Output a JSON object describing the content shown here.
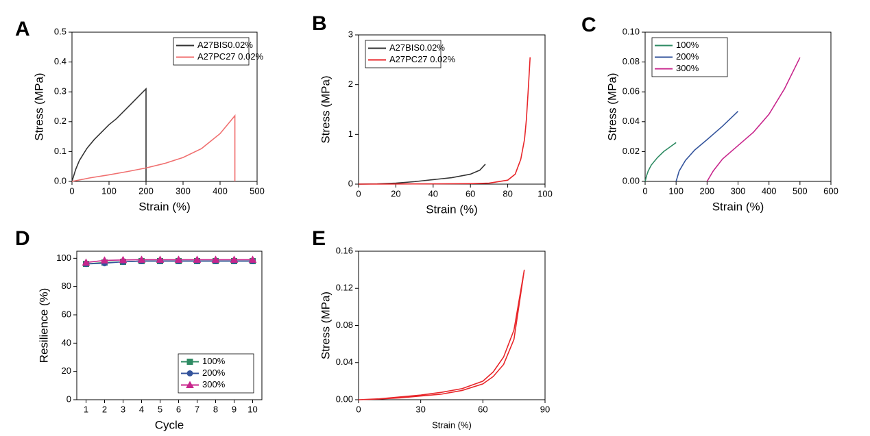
{
  "chart_data": [
    {
      "type": "line",
      "panel": "A",
      "xlabel": "Strain (%)",
      "ylabel": "Stress (MPa)",
      "xlim": [
        0,
        500
      ],
      "xticks": [
        0,
        100,
        200,
        300,
        400,
        500
      ],
      "ylim": [
        0,
        0.5
      ],
      "yticks": [
        {
          "value": 0,
          "label": "0.0"
        },
        0.1,
        0.2,
        0.3,
        0.4,
        0.5
      ],
      "legend": "upper right",
      "series": [
        {
          "name": "A27BIS0.02%",
          "color": "#333333",
          "x": [
            0,
            10,
            20,
            40,
            60,
            80,
            100,
            120,
            140,
            160,
            180,
            200,
            200
          ],
          "values": [
            0,
            0.04,
            0.07,
            0.11,
            0.14,
            0.165,
            0.19,
            0.21,
            0.235,
            0.26,
            0.285,
            0.31,
            0
          ]
        },
        {
          "name": "A27PC27 0.02%",
          "color": "#f07070",
          "x": [
            0,
            50,
            100,
            150,
            200,
            250,
            300,
            350,
            400,
            440,
            440
          ],
          "values": [
            0,
            0.012,
            0.022,
            0.033,
            0.045,
            0.06,
            0.08,
            0.11,
            0.16,
            0.22,
            0
          ]
        }
      ]
    },
    {
      "type": "line",
      "panel": "B",
      "xlabel": "Strain (%)",
      "ylabel": "Stress (MPa)",
      "xlim": [
        0,
        100
      ],
      "xticks": [
        0,
        20,
        40,
        60,
        80,
        100
      ],
      "ylim": [
        0,
        3
      ],
      "yticks": [
        0,
        1,
        2,
        3
      ],
      "legend": "upper left",
      "series": [
        {
          "name": "A27BIS0.02%",
          "color": "#333333",
          "x": [
            0,
            10,
            20,
            30,
            40,
            50,
            60,
            65,
            68
          ],
          "values": [
            0,
            0.005,
            0.02,
            0.05,
            0.09,
            0.13,
            0.2,
            0.28,
            0.4
          ]
        },
        {
          "name": "A27PC27 0.02%",
          "color": "#e8262a",
          "x": [
            0,
            20,
            40,
            60,
            70,
            80,
            84,
            87,
            89,
            90,
            91,
            92
          ],
          "values": [
            0,
            0.002,
            0.005,
            0.01,
            0.02,
            0.08,
            0.2,
            0.5,
            0.9,
            1.3,
            1.9,
            2.55
          ]
        }
      ]
    },
    {
      "type": "line",
      "panel": "C",
      "xlabel": "Strain (%)",
      "ylabel": "Stress (MPa)",
      "xlim": [
        0,
        600
      ],
      "xticks": [
        0,
        100,
        200,
        300,
        400,
        500,
        600
      ],
      "ylim": [
        0,
        0.1
      ],
      "yticks": [
        {
          "value": 0,
          "label": "0.00"
        },
        {
          "value": 0.02,
          "label": "0.02"
        },
        {
          "value": 0.04,
          "label": "0.04"
        },
        {
          "value": 0.06,
          "label": "0.06"
        },
        {
          "value": 0.08,
          "label": "0.08"
        },
        {
          "value": 0.1,
          "label": "0.10"
        }
      ],
      "legend": "upper left",
      "series": [
        {
          "name": "100%",
          "color": "#2e8b63",
          "x": [
            0,
            5,
            10,
            20,
            40,
            60,
            80,
            100
          ],
          "values": [
            0,
            0.004,
            0.007,
            0.011,
            0.016,
            0.02,
            0.023,
            0.026
          ]
        },
        {
          "name": "200%",
          "color": "#34549c",
          "x": [
            100,
            110,
            130,
            160,
            200,
            250,
            300
          ],
          "values": [
            0,
            0.007,
            0.014,
            0.021,
            0.028,
            0.037,
            0.047
          ]
        },
        {
          "name": "300%",
          "color": "#c8268c",
          "x": [
            200,
            220,
            250,
            300,
            350,
            400,
            450,
            500
          ],
          "values": [
            0,
            0.007,
            0.015,
            0.024,
            0.033,
            0.045,
            0.062,
            0.083
          ]
        }
      ]
    },
    {
      "type": "line",
      "panel": "D",
      "xlabel": "Cycle",
      "ylabel": "Resilience (%)",
      "xlim": [
        0.5,
        10.5
      ],
      "xticks": [
        1,
        2,
        3,
        4,
        5,
        6,
        7,
        8,
        9,
        10
      ],
      "ylim": [
        0,
        105
      ],
      "yticks": [
        0,
        20,
        40,
        60,
        80,
        100
      ],
      "legend": "lower right",
      "x": [
        1,
        2,
        3,
        4,
        5,
        6,
        7,
        8,
        9,
        10
      ],
      "series": [
        {
          "name": "100%",
          "color": "#2e8b63",
          "marker": "square",
          "values": [
            96,
            97,
            97.5,
            98,
            98,
            98,
            98,
            98,
            98,
            98
          ]
        },
        {
          "name": "200%",
          "color": "#34549c",
          "marker": "circle",
          "values": [
            96,
            96.5,
            97.5,
            98,
            98,
            98,
            98,
            98,
            98,
            98
          ]
        },
        {
          "name": "300%",
          "color": "#c8268c",
          "marker": "triangle",
          "values": [
            97,
            98.5,
            98.8,
            99,
            99,
            99,
            99,
            99,
            99,
            99
          ]
        }
      ]
    },
    {
      "type": "line",
      "panel": "E",
      "xlabel": "Strain (%)",
      "ylabel": "Stress (MPa)",
      "xlim": [
        0,
        90
      ],
      "xticks": [
        0,
        30,
        60,
        90
      ],
      "ylim": [
        0,
        0.16
      ],
      "yticks": [
        {
          "value": 0,
          "label": "0.00"
        },
        {
          "value": 0.04,
          "label": "0.04"
        },
        {
          "value": 0.08,
          "label": "0.08"
        },
        {
          "value": 0.12,
          "label": "0.12"
        },
        {
          "value": 0.16,
          "label": "0.16"
        }
      ],
      "series": [
        {
          "color": "#e8262a",
          "x": [
            0,
            10,
            20,
            30,
            40,
            50,
            60,
            65,
            70,
            75,
            80,
            75,
            70,
            65,
            60,
            50,
            40,
            30,
            20,
            10,
            0
          ],
          "values": [
            0,
            0.001,
            0.003,
            0.005,
            0.008,
            0.012,
            0.02,
            0.03,
            0.046,
            0.075,
            0.14,
            0.065,
            0.038,
            0.025,
            0.017,
            0.01,
            0.006,
            0.004,
            0.002,
            0.0008,
            0
          ]
        }
      ]
    }
  ]
}
